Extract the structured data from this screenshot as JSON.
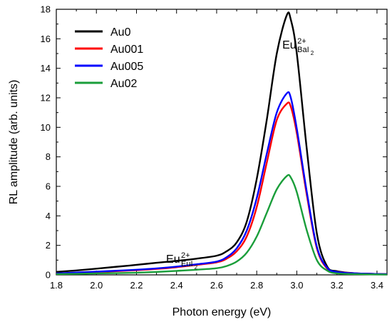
{
  "chart_data": {
    "type": "line",
    "xlabel": "Photon energy (eV)",
    "ylabel": "RL amplitude (arb. units)",
    "xlim": [
      1.8,
      3.45
    ],
    "ylim": [
      0,
      18
    ],
    "xticks": [
      "1.8",
      "2.0",
      "2.2",
      "2.4",
      "2.6",
      "2.8",
      "3.0",
      "3.2",
      "3.4"
    ],
    "yticks": [
      "0",
      "2",
      "4",
      "6",
      "8",
      "10",
      "12",
      "14",
      "16",
      "18"
    ],
    "legend_position": "top-left",
    "grid": false,
    "annotations": [
      {
        "base": "Eu",
        "sup": "2+",
        "sub": "EuI",
        "subsub": "2",
        "near": [
          2.49,
          1.8
        ]
      },
      {
        "base": "Eu",
        "sup": "2+",
        "sub": "BaI",
        "subsub": "2",
        "near": [
          3.07,
          16.3
        ]
      }
    ],
    "series": [
      {
        "name": "Au0",
        "color": "#000000",
        "x": [
          1.8,
          1.9,
          2.0,
          2.1,
          2.2,
          2.3,
          2.4,
          2.5,
          2.6,
          2.65,
          2.7,
          2.75,
          2.8,
          2.85,
          2.9,
          2.95,
          2.97,
          3.0,
          3.05,
          3.1,
          3.15,
          3.2,
          3.3,
          3.45
        ],
        "y": [
          0.2,
          0.3,
          0.42,
          0.55,
          0.68,
          0.82,
          0.95,
          1.1,
          1.3,
          1.6,
          2.2,
          3.6,
          6.5,
          10.5,
          15.0,
          17.6,
          17.3,
          15.0,
          8.5,
          2.8,
          0.6,
          0.25,
          0.1,
          0.05
        ]
      },
      {
        "name": "Au001",
        "color": "#ff0000",
        "x": [
          1.8,
          1.9,
          2.0,
          2.1,
          2.2,
          2.3,
          2.4,
          2.5,
          2.6,
          2.65,
          2.7,
          2.75,
          2.8,
          2.85,
          2.9,
          2.95,
          2.97,
          3.0,
          3.05,
          3.1,
          3.15,
          3.2,
          3.3,
          3.45
        ],
        "y": [
          0.1,
          0.15,
          0.2,
          0.25,
          0.32,
          0.4,
          0.52,
          0.68,
          0.85,
          1.1,
          1.6,
          2.6,
          4.6,
          7.6,
          10.5,
          11.6,
          11.4,
          9.6,
          5.4,
          1.8,
          0.45,
          0.2,
          0.1,
          0.05
        ]
      },
      {
        "name": "Au005",
        "color": "#0000ff",
        "x": [
          1.8,
          1.9,
          2.0,
          2.1,
          2.2,
          2.3,
          2.4,
          2.5,
          2.6,
          2.65,
          2.7,
          2.75,
          2.8,
          2.85,
          2.9,
          2.95,
          2.97,
          3.0,
          3.05,
          3.1,
          3.15,
          3.2,
          3.3,
          3.45
        ],
        "y": [
          0.1,
          0.16,
          0.22,
          0.28,
          0.35,
          0.44,
          0.56,
          0.72,
          0.9,
          1.2,
          1.8,
          3.0,
          5.2,
          8.2,
          11.0,
          12.3,
          12.0,
          9.9,
          5.6,
          1.9,
          0.5,
          0.2,
          0.1,
          0.05
        ]
      },
      {
        "name": "Au02",
        "color": "#1a9e3a",
        "x": [
          1.8,
          1.9,
          2.0,
          2.1,
          2.2,
          2.3,
          2.4,
          2.5,
          2.6,
          2.65,
          2.7,
          2.75,
          2.8,
          2.85,
          2.9,
          2.95,
          2.97,
          3.0,
          3.05,
          3.1,
          3.15,
          3.2,
          3.3,
          3.45
        ],
        "y": [
          0.05,
          0.07,
          0.1,
          0.12,
          0.15,
          0.2,
          0.27,
          0.35,
          0.45,
          0.6,
          0.9,
          1.5,
          2.6,
          4.2,
          5.8,
          6.7,
          6.6,
          5.6,
          3.0,
          1.0,
          0.3,
          0.1,
          0.05,
          0.02
        ]
      }
    ]
  }
}
